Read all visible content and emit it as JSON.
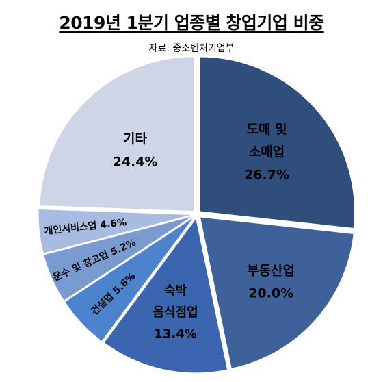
{
  "title": "2019년 1분기 업종별 창업기업 비중",
  "source": "자료: 중소벤처기업부",
  "chart_data": {
    "type": "pie",
    "title": "2019년 1분기 업종별 창업기업 비중",
    "slices": [
      {
        "name": "도매 및 소매업",
        "value": 26.7,
        "label_lines": [
          "도매 및",
          "소매업"
        ],
        "value_label": "26.7%",
        "color": "#2f4e7c"
      },
      {
        "name": "부동산업",
        "value": 20.0,
        "label_lines": [
          "부동산업"
        ],
        "value_label": "20.0%",
        "color": "#3e619a"
      },
      {
        "name": "숙박 음식점업",
        "value": 13.4,
        "label_lines": [
          "숙박",
          "음식점업"
        ],
        "value_label": "13.4%",
        "color": "#3b65ae"
      },
      {
        "name": "건설업",
        "value": 5.6,
        "label_lines": [
          "건설업 5.6%"
        ],
        "value_label": "",
        "color": "#4d82cc"
      },
      {
        "name": "운수 및 창고업",
        "value": 5.2,
        "label_lines": [
          "운수 및 창고업 5.2%"
        ],
        "value_label": "",
        "color": "#7a9bd0"
      },
      {
        "name": "개인서비스업",
        "value": 4.6,
        "label_lines": [
          "개인서비스업 4.6%"
        ],
        "value_label": "",
        "color": "#a7bce0"
      },
      {
        "name": "기타",
        "value": 24.4,
        "label_lines": [
          "기타"
        ],
        "value_label": "24.4%",
        "color": "#cdd5e6"
      }
    ]
  }
}
